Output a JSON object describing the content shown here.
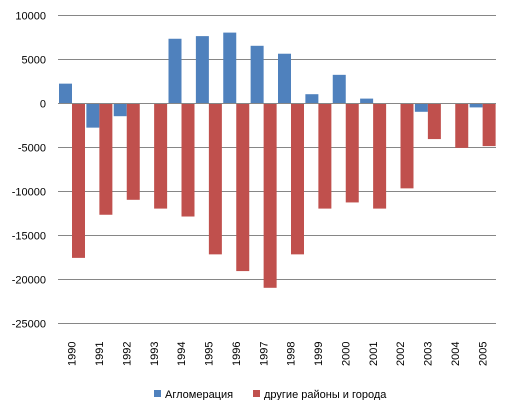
{
  "chart_data": {
    "type": "bar",
    "categories": [
      "1990",
      "1991",
      "1992",
      "1993",
      "1994",
      "1995",
      "1996",
      "1997",
      "1998",
      "1999",
      "2000",
      "2001",
      "2002",
      "2003",
      "2004",
      "2005"
    ],
    "series": [
      {
        "name": "Агломерация",
        "color": "#4f81bd",
        "values": [
          2200,
          -2800,
          -1500,
          0,
          7300,
          7600,
          8000,
          6500,
          5600,
          1000,
          3200,
          500,
          0,
          -1000,
          0,
          -500
        ]
      },
      {
        "name": "другие районы и города",
        "color": "#c0504d",
        "values": [
          -17600,
          -12700,
          -11000,
          -12000,
          -12900,
          -17200,
          -19100,
          -21000,
          -17200,
          -12000,
          -11300,
          -12000,
          -9700,
          -4100,
          -5100,
          -4900
        ]
      }
    ],
    "title": "",
    "xlabel": "",
    "ylabel": "",
    "ylim": [
      -25000,
      10000
    ],
    "yticks": [
      "10000",
      "5000",
      "0",
      "-5000",
      "-10000",
      "-15000",
      "-20000",
      "-25000"
    ],
    "grid": true,
    "legend": "bottom"
  }
}
